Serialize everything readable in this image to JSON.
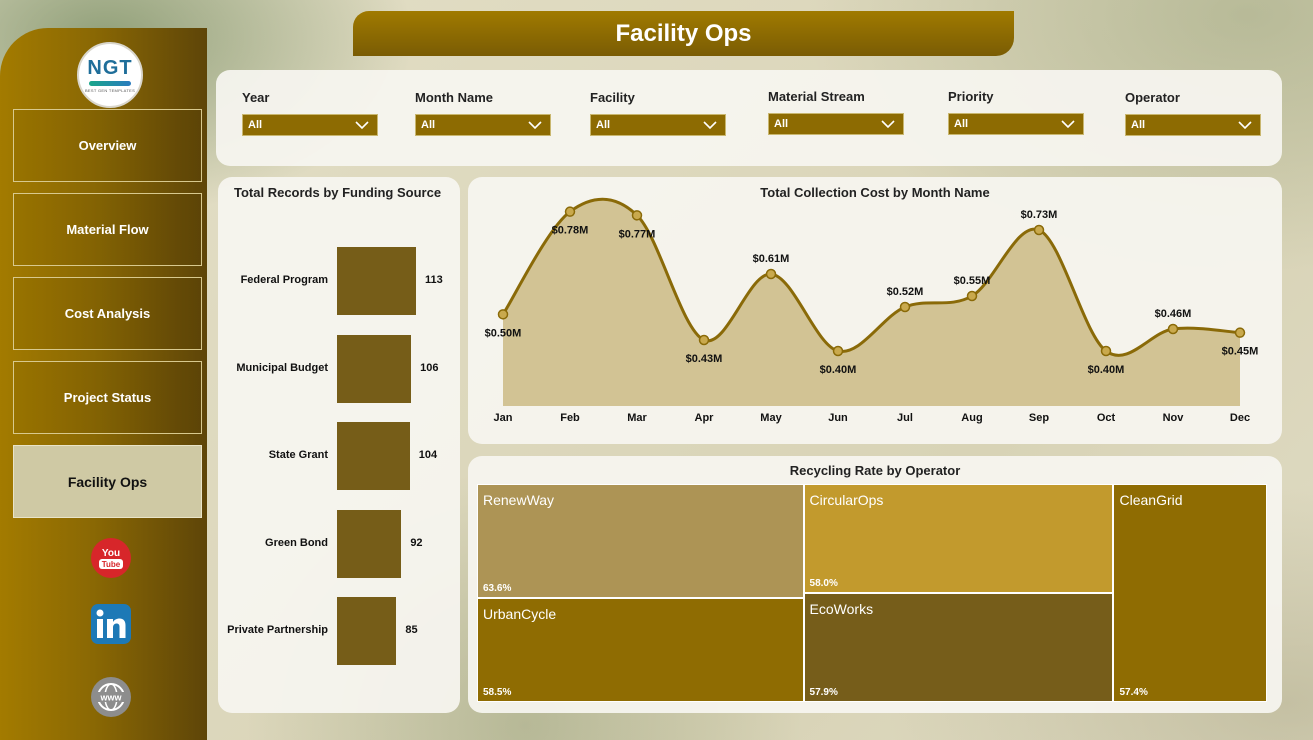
{
  "app": {
    "title": "Facility Ops",
    "logo": {
      "mark": "NGT",
      "subtitle": "BEST GEN TEMPLATES"
    }
  },
  "sidebar": {
    "items": [
      {
        "label": "Overview"
      },
      {
        "label": "Material Flow"
      },
      {
        "label": "Cost Analysis"
      },
      {
        "label": "Project Status"
      },
      {
        "label": "Facility Ops",
        "active": true
      }
    ],
    "social": [
      {
        "name": "youtube-icon",
        "text": "You Tube"
      },
      {
        "name": "linkedin-icon",
        "text": "in"
      },
      {
        "name": "website-icon",
        "text": "www"
      }
    ]
  },
  "filters": [
    {
      "label": "Year",
      "value": "All"
    },
    {
      "label": "Month Name",
      "value": "All"
    },
    {
      "label": "Facility",
      "value": "All"
    },
    {
      "label": "Material Stream",
      "value": "All"
    },
    {
      "label": "Priority",
      "value": "All"
    },
    {
      "label": "Operator",
      "value": "All"
    }
  ],
  "funding_chart": {
    "title": "Total Records by Funding Source"
  },
  "cost_chart": {
    "title": "Total Collection Cost by Month Name"
  },
  "recycling_chart": {
    "title": "Recycling Rate by Operator"
  },
  "chart_data": [
    {
      "type": "bar",
      "title": "Total Records by Funding Source",
      "orientation": "horizontal",
      "categories": [
        "Federal Program",
        "Municipal Budget",
        "State Grant",
        "Green Bond",
        "Private Partnership"
      ],
      "values": [
        113,
        106,
        104,
        92,
        85
      ],
      "labels": [
        "113",
        "106",
        "104",
        "92",
        "85"
      ],
      "color": "#765d18"
    },
    {
      "type": "area",
      "title": "Total Collection Cost by Month Name",
      "categories": [
        "Jan",
        "Feb",
        "Mar",
        "Apr",
        "May",
        "Jun",
        "Jul",
        "Aug",
        "Sep",
        "Oct",
        "Nov",
        "Dec"
      ],
      "values": [
        0.5,
        0.78,
        0.77,
        0.43,
        0.61,
        0.4,
        0.52,
        0.55,
        0.73,
        0.4,
        0.46,
        0.45
      ],
      "labels": [
        "$0.50M",
        "$0.78M",
        "$0.77M",
        "$0.43M",
        "$0.61M",
        "$0.40M",
        "$0.52M",
        "$0.55M",
        "$0.73M",
        "$0.40M",
        "$0.46M",
        "$0.45M"
      ],
      "label_position": [
        "below",
        "below",
        "below",
        "below",
        "above",
        "below",
        "above",
        "above",
        "above",
        "below",
        "above",
        "below"
      ],
      "ylim": [
        0.25,
        0.82
      ],
      "line_color": "#8a6a08",
      "fill_color": "#d2c394"
    },
    {
      "type": "treemap",
      "title": "Recycling Rate by Operator",
      "items": [
        {
          "name": "RenewWay",
          "value": 63.6,
          "label": "63.6%",
          "color": "#ad9455"
        },
        {
          "name": "UrbanCycle",
          "value": 58.5,
          "label": "58.5%",
          "color": "#8f6c02"
        },
        {
          "name": "CircularOps",
          "value": 58.0,
          "label": "58.0%",
          "color": "#c29a2d"
        },
        {
          "name": "EcoWorks",
          "value": 57.9,
          "label": "57.9%",
          "color": "#765d1a"
        },
        {
          "name": "CleanGrid",
          "value": 57.4,
          "label": "57.4%",
          "color": "#8f6c02"
        }
      ]
    }
  ]
}
